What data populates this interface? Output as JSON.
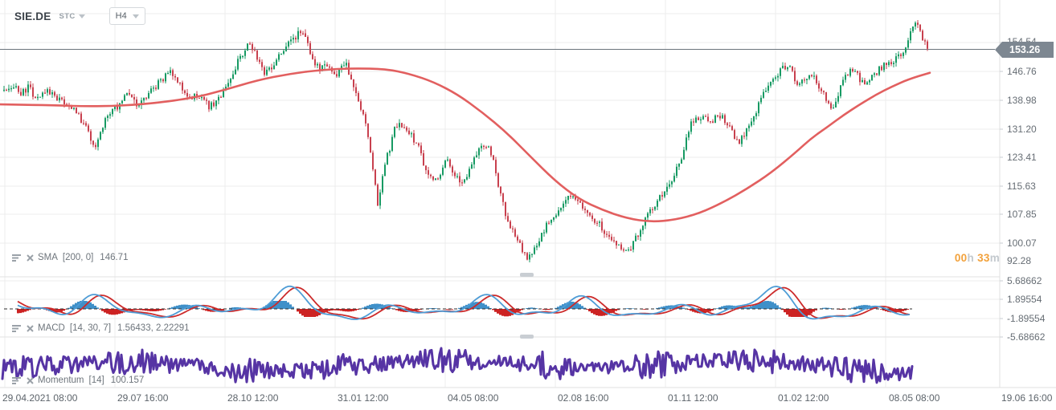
{
  "header": {
    "symbol": "SIE.DE",
    "market_code": "STC",
    "timeframe": "H4"
  },
  "price_axis": {
    "labels": [
      "154.54",
      "146.76",
      "138.98",
      "131.20",
      "123.41",
      "115.63",
      "107.85",
      "100.07",
      "92.28"
    ],
    "current": "153.26"
  },
  "macd_axis": {
    "labels": [
      "5.68662",
      "1.89554",
      "-1.89554",
      "-5.68662"
    ]
  },
  "time_axis": {
    "labels": [
      "29.04.2021  08:00",
      "29.07 16:00",
      "28.10 12:00",
      "31.01 12:00",
      "04.05 08:00",
      "02.08 16:00",
      "01.11 12:00",
      "01.02 12:00",
      "08.05 08:00",
      "19.06 16:00"
    ]
  },
  "countdown": {
    "hours": "00",
    "unit_h": "h",
    "minutes": "33",
    "unit_m": "m"
  },
  "indicators": [
    {
      "name": "SMA",
      "params": "[200,  0]",
      "values": "146.71"
    },
    {
      "name": "MACD",
      "params": "[14,  30,  7]",
      "values": "1.56433,  2.22291"
    },
    {
      "name": "Momentum",
      "params": "[14]",
      "values": "100.157"
    }
  ],
  "colors": {
    "candle_up": "#179a63",
    "candle_down": "#c8404e",
    "sma_line": "#e25f5f",
    "macd_fast_line": "#4e9cd6",
    "macd_slow_line": "#cc2a2a",
    "macd_hist_pos": "#3f90c9",
    "macd_hist_neg": "#cc2222",
    "momentum_line": "#5634a4",
    "grid": "#ececec",
    "separator": "#e2e2e2",
    "price_line": "#6b747c",
    "badge_bg": "#7d8791",
    "countdown_accent": "#f2a13b"
  },
  "chart_data": {
    "type": "candlestick",
    "symbol": "SIE.DE",
    "timeframe": "H4",
    "y_axis": {
      "ticks": [
        154.54,
        146.76,
        138.98,
        131.2,
        123.41,
        115.63,
        107.85,
        100.07,
        92.28
      ],
      "current_price": 153.26
    },
    "x_axis": {
      "ticks": [
        "29.04.2021 08:00",
        "29.07 16:00",
        "28.10 12:00",
        "31.01 12:00",
        "04.05 08:00",
        "02.08 16:00",
        "01.11 12:00",
        "01.02 12:00",
        "08.05 08:00",
        "19.06 16:00"
      ]
    },
    "indicator_settings": [
      {
        "type": "SMA",
        "period": 200,
        "shift": 0,
        "last": 146.71
      },
      {
        "type": "MACD",
        "fast": 14,
        "slow": 30,
        "signal": 7,
        "last_macd": 1.56433,
        "last_signal": 2.22291,
        "scale_ticks": [
          5.68662,
          1.89554,
          -1.89554,
          -5.68662
        ]
      },
      {
        "type": "Momentum",
        "period": 14,
        "last": 100.157
      }
    ],
    "price_path": [
      [
        5,
        141.8
      ],
      [
        15,
        143.3
      ],
      [
        25,
        140.5
      ],
      [
        35,
        142.7
      ],
      [
        45,
        139.7
      ],
      [
        55,
        141.8
      ],
      [
        65,
        140.5
      ],
      [
        75,
        139.0
      ],
      [
        85,
        137.9
      ],
      [
        95,
        135.8
      ],
      [
        105,
        132.5
      ],
      [
        112,
        129.3
      ],
      [
        118,
        126.7
      ],
      [
        125,
        130.4
      ],
      [
        132,
        134.0
      ],
      [
        140,
        135.8
      ],
      [
        150,
        138.4
      ],
      [
        158,
        140.5
      ],
      [
        165,
        139.0
      ],
      [
        172,
        137.9
      ],
      [
        180,
        139.6
      ],
      [
        188,
        141.8
      ],
      [
        196,
        143.3
      ],
      [
        205,
        145.5
      ],
      [
        212,
        147.0
      ],
      [
        220,
        144.4
      ],
      [
        228,
        141.2
      ],
      [
        236,
        139.0
      ],
      [
        244,
        140.5
      ],
      [
        252,
        139.0
      ],
      [
        260,
        137.5
      ],
      [
        268,
        138.4
      ],
      [
        276,
        140.5
      ],
      [
        284,
        143.3
      ],
      [
        292,
        147.6
      ],
      [
        300,
        150.9
      ],
      [
        308,
        154.7
      ],
      [
        315,
        152.6
      ],
      [
        322,
        149.1
      ],
      [
        330,
        146.1
      ],
      [
        338,
        147.6
      ],
      [
        345,
        149.8
      ],
      [
        352,
        152.6
      ],
      [
        360,
        154.1
      ],
      [
        368,
        156.2
      ],
      [
        375,
        157.3
      ],
      [
        382,
        154.7
      ],
      [
        390,
        149.8
      ],
      [
        398,
        147.0
      ],
      [
        406,
        148.3
      ],
      [
        412,
        147.0
      ],
      [
        418,
        145.7
      ],
      [
        424,
        147.6
      ],
      [
        430,
        149.6
      ],
      [
        436,
        145.5
      ],
      [
        442,
        141.2
      ],
      [
        448,
        137.9
      ],
      [
        454,
        133.6
      ],
      [
        460,
        127.1
      ],
      [
        465,
        118.5
      ],
      [
        470,
        111.0
      ],
      [
        475,
        116.4
      ],
      [
        480,
        122.8
      ],
      [
        485,
        126.1
      ],
      [
        490,
        131.5
      ],
      [
        496,
        133.2
      ],
      [
        502,
        131.9
      ],
      [
        508,
        130.4
      ],
      [
        514,
        128.9
      ],
      [
        520,
        126.7
      ],
      [
        526,
        122.8
      ],
      [
        532,
        119.6
      ],
      [
        538,
        118.1
      ],
      [
        544,
        116.8
      ],
      [
        550,
        120.3
      ],
      [
        556,
        122.8
      ],
      [
        562,
        120.3
      ],
      [
        568,
        118.1
      ],
      [
        574,
        116.8
      ],
      [
        580,
        118.1
      ],
      [
        586,
        120.7
      ],
      [
        592,
        123.9
      ],
      [
        598,
        126.7
      ],
      [
        604,
        127.6
      ],
      [
        610,
        125.4
      ],
      [
        616,
        120.7
      ],
      [
        622,
        114.2
      ],
      [
        628,
        109.5
      ],
      [
        634,
        105.6
      ],
      [
        640,
        103.0
      ],
      [
        646,
        100.9
      ],
      [
        652,
        98.1
      ],
      [
        658,
        96.5
      ],
      [
        664,
        99.1
      ],
      [
        670,
        101.3
      ],
      [
        676,
        103.9
      ],
      [
        682,
        106.0
      ],
      [
        688,
        107.8
      ],
      [
        694,
        109.0
      ],
      [
        700,
        110.3
      ],
      [
        706,
        112.9
      ],
      [
        712,
        114.2
      ],
      [
        718,
        112.5
      ],
      [
        724,
        110.8
      ],
      [
        730,
        109.0
      ],
      [
        736,
        107.8
      ],
      [
        742,
        106.5
      ],
      [
        748,
        105.0
      ],
      [
        754,
        103.5
      ],
      [
        760,
        102.0
      ],
      [
        766,
        100.6
      ],
      [
        772,
        99.1
      ],
      [
        778,
        97.8
      ],
      [
        784,
        99.5
      ],
      [
        790,
        101.7
      ],
      [
        796,
        103.9
      ],
      [
        802,
        106.7
      ],
      [
        808,
        108.8
      ],
      [
        814,
        110.3
      ],
      [
        820,
        112.5
      ],
      [
        826,
        114.6
      ],
      [
        832,
        116.8
      ],
      [
        838,
        118.5
      ],
      [
        844,
        121.1
      ],
      [
        848,
        123.9
      ],
      [
        852,
        127.1
      ],
      [
        856,
        130.4
      ],
      [
        860,
        132.5
      ],
      [
        865,
        134.0
      ],
      [
        870,
        133.2
      ],
      [
        875,
        134.7
      ],
      [
        880,
        133.6
      ],
      [
        885,
        132.5
      ],
      [
        890,
        134.0
      ],
      [
        895,
        135.3
      ],
      [
        900,
        134.0
      ],
      [
        905,
        132.5
      ],
      [
        910,
        130.4
      ],
      [
        915,
        128.9
      ],
      [
        920,
        128.2
      ],
      [
        925,
        129.7
      ],
      [
        930,
        131.5
      ],
      [
        935,
        133.6
      ],
      [
        940,
        135.8
      ],
      [
        945,
        138.4
      ],
      [
        950,
        140.5
      ],
      [
        955,
        142.7
      ],
      [
        960,
        144.4
      ],
      [
        965,
        145.5
      ],
      [
        970,
        146.5
      ],
      [
        975,
        147.6
      ],
      [
        980,
        148.7
      ],
      [
        985,
        146.5
      ],
      [
        990,
        144.4
      ],
      [
        995,
        143.3
      ],
      [
        1000,
        144.8
      ],
      [
        1005,
        145.5
      ],
      [
        1010,
        146.1
      ],
      [
        1015,
        144.8
      ],
      [
        1020,
        142.7
      ],
      [
        1025,
        140.5
      ],
      [
        1030,
        138.4
      ],
      [
        1035,
        136.8
      ],
      [
        1040,
        139.0
      ],
      [
        1045,
        141.8
      ],
      [
        1050,
        144.4
      ],
      [
        1055,
        146.5
      ],
      [
        1060,
        147.6
      ],
      [
        1065,
        146.1
      ],
      [
        1070,
        144.8
      ],
      [
        1075,
        143.9
      ],
      [
        1080,
        144.8
      ],
      [
        1085,
        145.7
      ],
      [
        1090,
        146.5
      ],
      [
        1095,
        147.4
      ],
      [
        1100,
        148.3
      ],
      [
        1105,
        148.7
      ],
      [
        1110,
        149.6
      ],
      [
        1115,
        150.4
      ],
      [
        1120,
        151.3
      ],
      [
        1125,
        152.6
      ],
      [
        1130,
        155.2
      ],
      [
        1135,
        157.7
      ],
      [
        1140,
        159.9
      ],
      [
        1145,
        157.3
      ],
      [
        1150,
        154.1
      ],
      [
        1155,
        153.3
      ]
    ],
    "sma_path": [
      [
        0,
        137.9
      ],
      [
        60,
        137.7
      ],
      [
        120,
        137.3
      ],
      [
        180,
        137.9
      ],
      [
        240,
        139.6
      ],
      [
        280,
        141.8
      ],
      [
        320,
        144.4
      ],
      [
        360,
        146.1
      ],
      [
        400,
        147.2
      ],
      [
        440,
        147.6
      ],
      [
        480,
        147.4
      ],
      [
        510,
        146.1
      ],
      [
        540,
        143.9
      ],
      [
        570,
        140.5
      ],
      [
        600,
        135.8
      ],
      [
        630,
        130.4
      ],
      [
        660,
        123.9
      ],
      [
        690,
        117.5
      ],
      [
        720,
        112.5
      ],
      [
        750,
        109.5
      ],
      [
        780,
        107.3
      ],
      [
        810,
        106.3
      ],
      [
        840,
        106.9
      ],
      [
        870,
        108.6
      ],
      [
        900,
        111.6
      ],
      [
        930,
        115.3
      ],
      [
        960,
        119.6
      ],
      [
        990,
        125.0
      ],
      [
        1010,
        128.9
      ],
      [
        1030,
        131.9
      ],
      [
        1050,
        135.1
      ],
      [
        1070,
        137.9
      ],
      [
        1090,
        140.5
      ],
      [
        1110,
        142.7
      ],
      [
        1130,
        144.6
      ],
      [
        1157,
        146.4
      ]
    ]
  }
}
